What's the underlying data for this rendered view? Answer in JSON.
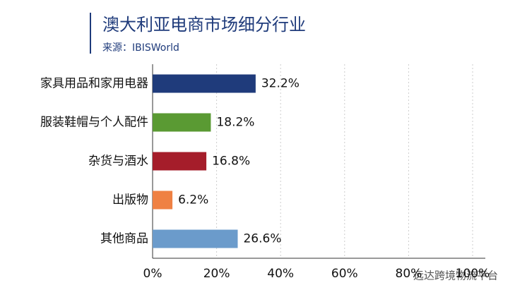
{
  "chart_data": {
    "type": "bar",
    "orientation": "horizontal",
    "title": "澳大利亚电商市场细分行业",
    "subtitle": "来源：IBISWorld",
    "categories": [
      "家具用品和家用电器",
      "服装鞋帽与个人配件",
      "杂货与酒水",
      "出版物",
      "其他商品"
    ],
    "values": [
      32.2,
      18.2,
      16.8,
      6.2,
      26.6
    ],
    "value_labels": [
      "32.2%",
      "18.2%",
      "16.8%",
      "6.2%",
      "26.6%"
    ],
    "colors": [
      "#1f3b7b",
      "#5a9a33",
      "#a51d2a",
      "#ef8143",
      "#6b9bcb"
    ],
    "xlim": [
      0,
      100
    ],
    "xticks": [
      {
        "value": 0,
        "label": "0%"
      },
      {
        "value": 20,
        "label": "20%"
      },
      {
        "value": 40,
        "label": "40%"
      },
      {
        "value": 60,
        "label": "60%"
      },
      {
        "value": 80,
        "label": "80%"
      },
      {
        "value": 100,
        "label": "100%"
      }
    ],
    "grid": true,
    "watermark": "远达跨境物流平台"
  }
}
